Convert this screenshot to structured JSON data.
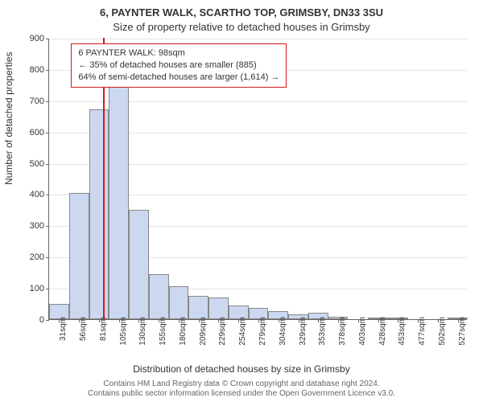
{
  "chart": {
    "type": "histogram",
    "title_line1": "6, PAYNTER WALK, SCARTHO TOP, GRIMSBY, DN33 3SU",
    "title_line2": "Size of property relative to detached houses in Grimsby",
    "ylabel": "Number of detached properties",
    "xlabel": "Distribution of detached houses by size in Grimsby",
    "background_color": "#ffffff",
    "bar_fill": "#ccd8f0",
    "bar_border": "#888888",
    "grid_color": "#e5e5e5",
    "axis_color": "#666666",
    "ylim": [
      0,
      900
    ],
    "ytick_step": 100,
    "yticks": [
      0,
      100,
      200,
      300,
      400,
      500,
      600,
      700,
      800,
      900
    ],
    "xticks": [
      "31sqm",
      "56sqm",
      "81sqm",
      "105sqm",
      "130sqm",
      "155sqm",
      "180sqm",
      "209sqm",
      "229sqm",
      "254sqm",
      "279sqm",
      "304sqm",
      "329sqm",
      "353sqm",
      "378sqm",
      "403sqm",
      "428sqm",
      "453sqm",
      "477sqm",
      "502sqm",
      "527sqm"
    ],
    "values": [
      50,
      405,
      670,
      780,
      350,
      145,
      105,
      75,
      70,
      45,
      35,
      25,
      15,
      20,
      8,
      0,
      5,
      3,
      0,
      0,
      3
    ],
    "marker": {
      "bin_index": 2,
      "position_in_bin": 0.72,
      "color": "#d41b1b"
    },
    "annotation": {
      "line1": "6 PAYNTER WALK: 98sqm",
      "line2": "← 35% of detached houses are smaller (885)",
      "line3": "64% of semi-detached houses are larger (1,614) →",
      "border_color": "#d41b1b",
      "background": "#ffffff"
    },
    "footer_line1": "Contains HM Land Registry data © Crown copyright and database right 2024.",
    "footer_line2": "Contains public sector information licensed under the Open Government Licence v3.0."
  }
}
